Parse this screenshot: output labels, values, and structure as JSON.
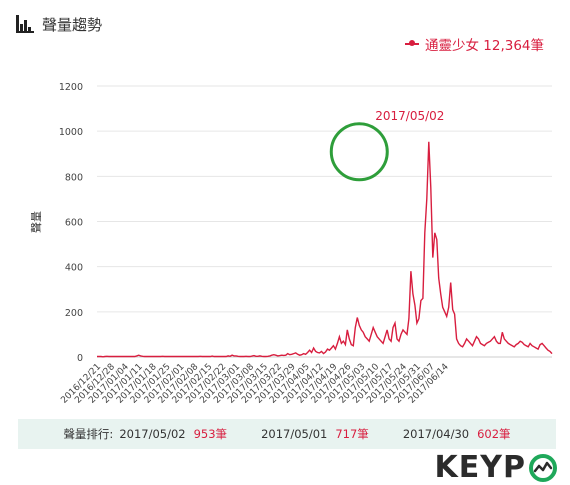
{
  "header": {
    "title": "聲量趨勢",
    "icon": "bar-chart-icon"
  },
  "legend": {
    "label": "通靈少女 12,364筆",
    "color": "#d81e3f"
  },
  "annotation": {
    "label": "2017/05/02",
    "date": "2017/05/02",
    "value": 953,
    "circle_color": "#2e9e3a"
  },
  "chart_data": {
    "type": "line",
    "ylabel": "聲量",
    "ylim": [
      0,
      1200
    ],
    "yticks": [
      0,
      200,
      400,
      600,
      800,
      1000,
      1200
    ],
    "grid": true,
    "line_color": "#d81e3f",
    "xtick_labels": [
      "2016/12/21",
      "2016/12/28",
      "2017/01/04",
      "2017/01/11",
      "2017/01/18",
      "2017/01/25",
      "2017/02/01",
      "2017/02/08",
      "2017/02/15",
      "2017/02/22",
      "2017/03/01",
      "2017/03/08",
      "2017/03/15",
      "2017/03/22",
      "2017/03/29",
      "2017/04/05",
      "2017/04/12",
      "2017/04/19",
      "2017/04/26",
      "2017/05/03",
      "2017/05/10",
      "2017/05/17",
      "2017/05/24",
      "2017/05/31",
      "2017/06/07",
      "2017/06/14"
    ],
    "start_date": "2016/12/21",
    "values": [
      2,
      2,
      2,
      1,
      2,
      3,
      2,
      2,
      2,
      2,
      2,
      2,
      2,
      2,
      2,
      2,
      2,
      2,
      2,
      2,
      5,
      8,
      5,
      3,
      2,
      2,
      2,
      2,
      2,
      2,
      2,
      2,
      2,
      3,
      2,
      2,
      2,
      2,
      2,
      2,
      2,
      2,
      2,
      2,
      2,
      2,
      2,
      2,
      2,
      2,
      2,
      2,
      3,
      2,
      2,
      2,
      2,
      2,
      4,
      2,
      2,
      2,
      2,
      2,
      2,
      2,
      5,
      3,
      8,
      5,
      5,
      3,
      2,
      2,
      2,
      3,
      2,
      2,
      4,
      6,
      3,
      3,
      5,
      3,
      2,
      2,
      3,
      5,
      8,
      10,
      8,
      5,
      6,
      8,
      7,
      8,
      15,
      10,
      12,
      15,
      18,
      12,
      8,
      10,
      15,
      12,
      20,
      30,
      20,
      40,
      25,
      20,
      18,
      25,
      15,
      22,
      35,
      30,
      40,
      50,
      35,
      60,
      90,
      60,
      70,
      55,
      120,
      80,
      55,
      50,
      130,
      175,
      140,
      120,
      110,
      90,
      80,
      70,
      100,
      130,
      110,
      90,
      80,
      70,
      60,
      90,
      120,
      80,
      70,
      130,
      150,
      80,
      70,
      100,
      120,
      110,
      100,
      170,
      380,
      280,
      230,
      150,
      170,
      250,
      260,
      550,
      700,
      953,
      750,
      440,
      550,
      520,
      350,
      280,
      220,
      200,
      180,
      220,
      330,
      210,
      190,
      80,
      60,
      50,
      45,
      60,
      80,
      70,
      60,
      50,
      70,
      90,
      80,
      60,
      55,
      50,
      60,
      65,
      70,
      80,
      90,
      70,
      60,
      60,
      110,
      80,
      70,
      60,
      55,
      50,
      45,
      55,
      60,
      70,
      65,
      55,
      50,
      45,
      60,
      50,
      45,
      40,
      35,
      55,
      60,
      50,
      40,
      30,
      25,
      15
    ]
  },
  "stats": {
    "label": "聲量排行:",
    "items": [
      {
        "date": "2017/05/02",
        "value": "953筆"
      },
      {
        "date": "2017/05/01",
        "value": "717筆"
      },
      {
        "date": "2017/04/30",
        "value": "602筆"
      }
    ]
  },
  "logo": {
    "text": "KEYP",
    "icon": "o-with-trend-icon",
    "accent": "#1fa85a"
  }
}
